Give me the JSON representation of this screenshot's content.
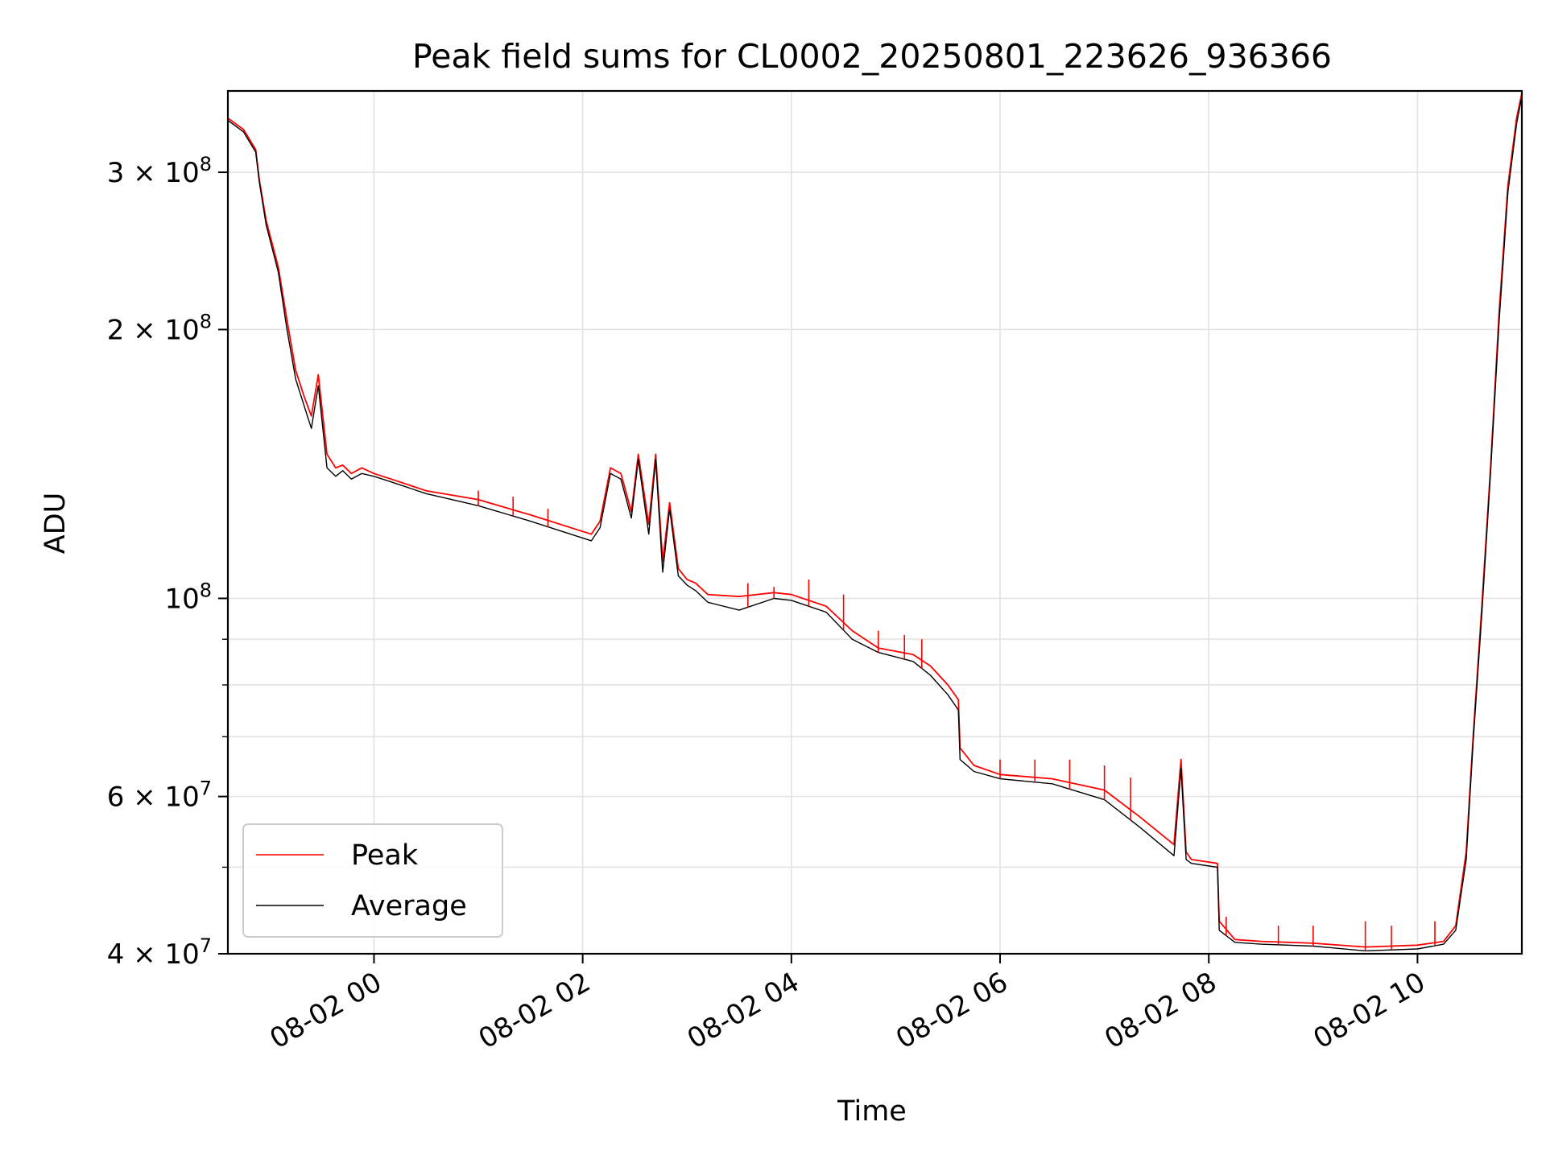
{
  "chart_data": {
    "type": "line",
    "title": "Peak field sums for CL0002_20250801_223626_936366",
    "xlabel": "Time",
    "ylabel": "ADU",
    "yscale": "log",
    "grid": true,
    "legend_location": "lower left",
    "xlim": [
      "2025-08-01 22:36",
      "2025-08-02 11:00"
    ],
    "ylim": [
      40000000,
      370000000
    ],
    "x_ticks": [
      {
        "x": "2025-08-02 00:00",
        "label": "08-02 00"
      },
      {
        "x": "2025-08-02 02:00",
        "label": "08-02 02"
      },
      {
        "x": "2025-08-02 04:00",
        "label": "08-02 04"
      },
      {
        "x": "2025-08-02 06:00",
        "label": "08-02 06"
      },
      {
        "x": "2025-08-02 08:00",
        "label": "08-02 08"
      },
      {
        "x": "2025-08-02 10:00",
        "label": "08-02 10"
      }
    ],
    "y_ticks": [
      {
        "value": 40000000,
        "base": "4 × 10",
        "exp": "7"
      },
      {
        "value": 60000000,
        "base": "6 × 10",
        "exp": "7"
      },
      {
        "value": 100000000,
        "base": "10",
        "exp": "8"
      },
      {
        "value": 200000000,
        "base": "2 × 10",
        "exp": "8"
      },
      {
        "value": 300000000,
        "base": "3 × 10",
        "exp": "8"
      }
    ],
    "y_minor_ticks": [
      50000000,
      70000000,
      80000000,
      90000000
    ],
    "series": [
      {
        "name": "Peak",
        "color": "#ff0000",
        "x": [
          "2025-08-01 22:36",
          "2025-08-01 22:45",
          "2025-08-01 22:52",
          "2025-08-01 22:54",
          "2025-08-01 22:58",
          "2025-08-01 23:05",
          "2025-08-01 23:10",
          "2025-08-01 23:15",
          "2025-08-01 23:20",
          "2025-08-01 23:24",
          "2025-08-01 23:28",
          "2025-08-01 23:33",
          "2025-08-01 23:38",
          "2025-08-01 23:42",
          "2025-08-01 23:47",
          "2025-08-01 23:53",
          "2025-08-02 00:00",
          "2025-08-02 00:10",
          "2025-08-02 00:30",
          "2025-08-02 01:00",
          "2025-08-02 01:30",
          "2025-08-02 02:05",
          "2025-08-02 02:10",
          "2025-08-02 02:16",
          "2025-08-02 02:22",
          "2025-08-02 02:28",
          "2025-08-02 02:32",
          "2025-08-02 02:38",
          "2025-08-02 02:42",
          "2025-08-02 02:46",
          "2025-08-02 02:50",
          "2025-08-02 02:55",
          "2025-08-02 03:00",
          "2025-08-02 03:05",
          "2025-08-02 03:12",
          "2025-08-02 03:30",
          "2025-08-02 03:50",
          "2025-08-02 04:00",
          "2025-08-02 04:20",
          "2025-08-02 04:35",
          "2025-08-02 04:50",
          "2025-08-02 05:10",
          "2025-08-02 05:20",
          "2025-08-02 05:30",
          "2025-08-02 05:36",
          "2025-08-02 05:37",
          "2025-08-02 05:45",
          "2025-08-02 06:00",
          "2025-08-02 06:30",
          "2025-08-02 07:00",
          "2025-08-02 07:20",
          "2025-08-02 07:40",
          "2025-08-02 07:44",
          "2025-08-02 07:47",
          "2025-08-02 07:50",
          "2025-08-02 08:05",
          "2025-08-02 08:06",
          "2025-08-02 08:15",
          "2025-08-02 08:30",
          "2025-08-02 09:00",
          "2025-08-02 09:30",
          "2025-08-02 10:00",
          "2025-08-02 10:15",
          "2025-08-02 10:22",
          "2025-08-02 10:28",
          "2025-08-02 10:32",
          "2025-08-02 10:37",
          "2025-08-02 10:42",
          "2025-08-02 10:47",
          "2025-08-02 10:52",
          "2025-08-02 10:57",
          "2025-08-02 11:00"
        ],
        "y": [
          345000000,
          335000000,
          318000000,
          295000000,
          265000000,
          235000000,
          205000000,
          180000000,
          168000000,
          160000000,
          178000000,
          145000000,
          140000000,
          141000000,
          138000000,
          140000000,
          138000000,
          136000000,
          132000000,
          129000000,
          124000000,
          118000000,
          122000000,
          140000000,
          138000000,
          125000000,
          145000000,
          121000000,
          145000000,
          110000000,
          128000000,
          108000000,
          105000000,
          104000000,
          101000000,
          100500000,
          101500000,
          101000000,
          98000000,
          92000000,
          88000000,
          86500000,
          84000000,
          80000000,
          77000000,
          68000000,
          65000000,
          63500000,
          62800000,
          61000000,
          57000000,
          53000000,
          66000000,
          52000000,
          51000000,
          50500000,
          43500000,
          41500000,
          41300000,
          41100000,
          40700000,
          40900000,
          41300000,
          43000000,
          52000000,
          70000000,
          98000000,
          140000000,
          210000000,
          290000000,
          345000000,
          368000000
        ],
        "spikes": [
          [
            "2025-08-02 01:00",
            132000000
          ],
          [
            "2025-08-02 01:20",
            130000000
          ],
          [
            "2025-08-02 01:40",
            126000000
          ],
          [
            "2025-08-02 03:35",
            104000000
          ],
          [
            "2025-08-02 03:50",
            103000000
          ],
          [
            "2025-08-02 04:10",
            105000000
          ],
          [
            "2025-08-02 04:30",
            101000000
          ],
          [
            "2025-08-02 04:50",
            92000000
          ],
          [
            "2025-08-02 05:05",
            91000000
          ],
          [
            "2025-08-02 05:15",
            90000000
          ],
          [
            "2025-08-02 06:00",
            66000000
          ],
          [
            "2025-08-02 06:20",
            66000000
          ],
          [
            "2025-08-02 06:40",
            66000000
          ],
          [
            "2025-08-02 07:00",
            65000000
          ],
          [
            "2025-08-02 07:15",
            63000000
          ],
          [
            "2025-08-02 08:10",
            44000000
          ],
          [
            "2025-08-02 08:40",
            43000000
          ],
          [
            "2025-08-02 09:00",
            43000000
          ],
          [
            "2025-08-02 09:30",
            43500000
          ],
          [
            "2025-08-02 09:45",
            43000000
          ],
          [
            "2025-08-02 10:10",
            43500000
          ]
        ]
      },
      {
        "name": "Average",
        "color": "#000000",
        "x": [
          "2025-08-01 22:36",
          "2025-08-01 22:45",
          "2025-08-01 22:52",
          "2025-08-01 22:54",
          "2025-08-01 22:58",
          "2025-08-01 23:05",
          "2025-08-01 23:10",
          "2025-08-01 23:15",
          "2025-08-01 23:20",
          "2025-08-01 23:24",
          "2025-08-01 23:28",
          "2025-08-01 23:33",
          "2025-08-01 23:38",
          "2025-08-01 23:42",
          "2025-08-01 23:47",
          "2025-08-01 23:53",
          "2025-08-02 00:00",
          "2025-08-02 00:10",
          "2025-08-02 00:30",
          "2025-08-02 01:00",
          "2025-08-02 01:30",
          "2025-08-02 02:05",
          "2025-08-02 02:10",
          "2025-08-02 02:16",
          "2025-08-02 02:22",
          "2025-08-02 02:28",
          "2025-08-02 02:32",
          "2025-08-02 02:38",
          "2025-08-02 02:42",
          "2025-08-02 02:46",
          "2025-08-02 02:50",
          "2025-08-02 02:55",
          "2025-08-02 03:00",
          "2025-08-02 03:05",
          "2025-08-02 03:12",
          "2025-08-02 03:30",
          "2025-08-02 03:50",
          "2025-08-02 04:00",
          "2025-08-02 04:20",
          "2025-08-02 04:35",
          "2025-08-02 04:50",
          "2025-08-02 05:10",
          "2025-08-02 05:20",
          "2025-08-02 05:30",
          "2025-08-02 05:36",
          "2025-08-02 05:37",
          "2025-08-02 05:45",
          "2025-08-02 06:00",
          "2025-08-02 06:30",
          "2025-08-02 07:00",
          "2025-08-02 07:20",
          "2025-08-02 07:40",
          "2025-08-02 07:44",
          "2025-08-02 07:47",
          "2025-08-02 07:50",
          "2025-08-02 08:05",
          "2025-08-02 08:06",
          "2025-08-02 08:15",
          "2025-08-02 08:30",
          "2025-08-02 09:00",
          "2025-08-02 09:30",
          "2025-08-02 10:00",
          "2025-08-02 10:15",
          "2025-08-02 10:22",
          "2025-08-02 10:28",
          "2025-08-02 10:32",
          "2025-08-02 10:37",
          "2025-08-02 10:42",
          "2025-08-02 10:47",
          "2025-08-02 10:52",
          "2025-08-02 10:57",
          "2025-08-02 11:00"
        ],
        "y": [
          343000000,
          333000000,
          316000000,
          293000000,
          262000000,
          232000000,
          200000000,
          176000000,
          164000000,
          155000000,
          173000000,
          140000000,
          137000000,
          139000000,
          136000000,
          138000000,
          137000000,
          135000000,
          131000000,
          127000000,
          122000000,
          116000000,
          120000000,
          138000000,
          136000000,
          123000000,
          143000000,
          118000000,
          143000000,
          107000000,
          126000000,
          106000000,
          103500000,
          102000000,
          99000000,
          97000000,
          100000000,
          99500000,
          96500000,
          90000000,
          87000000,
          85000000,
          82000000,
          78000000,
          75000000,
          66000000,
          64000000,
          62800000,
          62000000,
          59500000,
          55500000,
          51500000,
          64500000,
          51000000,
          50500000,
          50000000,
          42500000,
          41200000,
          41000000,
          40800000,
          40300000,
          40500000,
          41000000,
          42500000,
          51000000,
          69000000,
          96000000,
          138000000,
          205000000,
          285000000,
          340000000,
          365000000
        ]
      }
    ]
  }
}
